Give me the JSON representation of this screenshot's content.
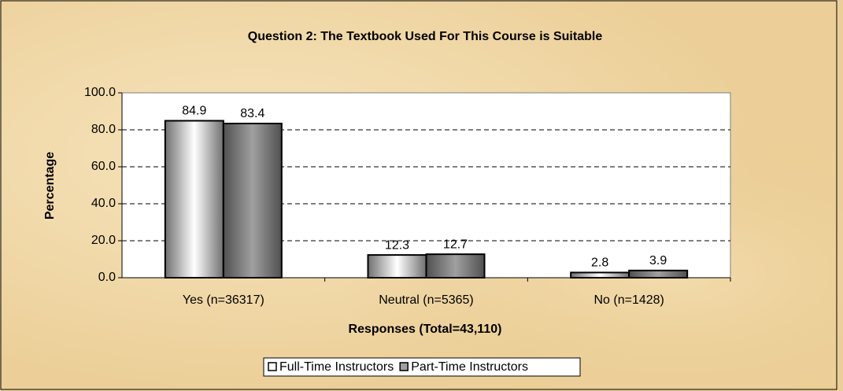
{
  "chart_data": {
    "type": "bar",
    "title": "Question 2:  The Textbook Used For This Course is Suitable",
    "xlabel": "Responses (Total=43,110)",
    "ylabel": "Percentage",
    "categories": [
      "Yes (n=36317)",
      "Neutral (n=5365)",
      "No (n=1428)"
    ],
    "series": [
      {
        "name": "Full-Time Instructors",
        "color": "#ffffff",
        "values": [
          84.9,
          12.3,
          2.8
        ]
      },
      {
        "name": "Part-Time Instructors",
        "color": "#a0a0a0",
        "values": [
          83.4,
          12.7,
          3.9
        ]
      }
    ],
    "ylim": [
      0,
      100
    ],
    "yticks": [
      {
        "value": 0,
        "label": "0.0"
      },
      {
        "value": 20,
        "label": "20.0"
      },
      {
        "value": 40,
        "label": "40.0"
      },
      {
        "value": 60,
        "label": "60.0"
      },
      {
        "value": 80,
        "label": "80.0"
      },
      {
        "value": 100,
        "label": "100.0"
      }
    ],
    "grid": true,
    "legend": "bottom"
  }
}
